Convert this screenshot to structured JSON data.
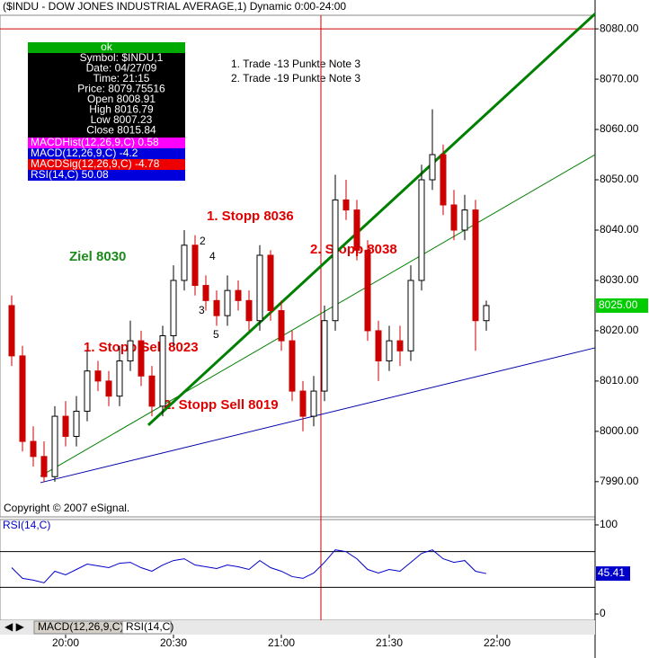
{
  "chart_data": {
    "type": "candlestick",
    "title": "($INDU - DOW JONES INDUSTRIAL AVERAGE,1) Dynamic 0:00-24:00",
    "up_color": "#000000",
    "down_color": "#cc0000",
    "x": [
      1185,
      1188,
      1191,
      1194,
      1197,
      1200,
      1203,
      1206,
      1209,
      1212,
      1215,
      1218,
      1221,
      1224,
      1227,
      1230,
      1233,
      1236,
      1239,
      1242,
      1245,
      1248,
      1251,
      1254,
      1257,
      1260,
      1263,
      1266,
      1269,
      1272,
      1275,
      1278,
      1281,
      1284,
      1287,
      1290,
      1293,
      1296,
      1299,
      1302,
      1305,
      1308,
      1311,
      1314,
      1317
    ],
    "open": [
      8025,
      8015,
      7998,
      7995,
      7991,
      8003,
      7999,
      8004,
      8012,
      8010,
      8007,
      8014,
      8018,
      8011,
      8005,
      8019,
      8030,
      8037,
      8029,
      8026,
      8023,
      8028,
      8026,
      8022,
      8035,
      8024,
      8018,
      8008,
      8003,
      8008,
      8022,
      8046,
      8044,
      8036,
      8020,
      8014,
      8018,
      8016,
      8030,
      8050,
      8055,
      8045,
      8040,
      8044,
      8022
    ],
    "high": [
      8027,
      8017,
      8001,
      7998,
      8005,
      8006,
      8007,
      8016,
      8014,
      8012,
      8017,
      8022,
      8020,
      8013,
      8021,
      8033,
      8040,
      8039,
      8031,
      8028,
      8031,
      8030,
      8028,
      8037,
      8036,
      8026,
      8020,
      8010,
      8011,
      8025,
      8051,
      8050,
      8046,
      8038,
      8022,
      8021,
      8021,
      8033,
      8053,
      8064,
      8057,
      8048,
      8047,
      8046,
      8026
    ],
    "low": [
      8013,
      7996,
      7993,
      7990,
      7990,
      7997,
      7997,
      8002,
      8008,
      8005,
      8005,
      8012,
      8009,
      8003,
      8003,
      8017,
      8028,
      8027,
      8024,
      8021,
      8021,
      8024,
      8020,
      8020,
      8022,
      8016,
      8006,
      8000,
      8001,
      8006,
      8020,
      8042,
      8034,
      8018,
      8010,
      8012,
      8013,
      8014,
      8028,
      8048,
      8043,
      8038,
      8038,
      8016,
      8020
    ],
    "close": [
      8015,
      7998,
      7995,
      7991,
      8003,
      7999,
      8004,
      8012,
      8010,
      8007,
      8014,
      8018,
      8011,
      8005,
      8019,
      8030,
      8037,
      8029,
      8026,
      8023,
      8028,
      8026,
      8022,
      8035,
      8024,
      8018,
      8008,
      8003,
      8008,
      8022,
      8046,
      8044,
      8036,
      8020,
      8014,
      8018,
      8016,
      8030,
      8050,
      8055,
      8045,
      8040,
      8044,
      8022,
      8025
    ],
    "xlim": [
      1181.75,
      1347.25
    ],
    "xticks": [
      {
        "value": 1200,
        "label": "20:00"
      },
      {
        "value": 1230,
        "label": "20:30"
      },
      {
        "value": 1260,
        "label": "21:00"
      },
      {
        "value": 1290,
        "label": "21:30"
      },
      {
        "value": 1320,
        "label": "22:00"
      }
    ],
    "ylim": [
      7983,
      8082.7
    ],
    "yticks": [
      {
        "value": 7990,
        "label": "7990.00"
      },
      {
        "value": 8000,
        "label": "8000.00"
      },
      {
        "value": 8010,
        "label": "8010.00"
      },
      {
        "value": 8020,
        "label": "8020.00"
      },
      {
        "value": 8030,
        "label": "8030.00"
      },
      {
        "value": 8040,
        "label": "8040.00"
      },
      {
        "value": 8050,
        "label": "8050.00"
      },
      {
        "value": 8060,
        "label": "8060.00"
      },
      {
        "value": 8070,
        "label": "8070.00"
      },
      {
        "value": 8080,
        "label": "8080.00"
      }
    ],
    "last_price": {
      "value": 8025,
      "label": "8025.00"
    },
    "hline": 8080,
    "vline": 1271,
    "trendlines": [
      {
        "color": "#008000",
        "width": 3,
        "x": [
          1223,
          1347.25
        ],
        "y": [
          8001.25,
          8083
        ]
      },
      {
        "color": "#008000",
        "width": 1,
        "x": [
          1193,
          1347.25
        ],
        "y": [
          7991.1,
          8055
        ]
      },
      {
        "color": "#0000aa",
        "width": 1,
        "x": [
          1193,
          1347.25
        ],
        "y": [
          7989.8,
          8016.6
        ]
      }
    ],
    "annotations": [
      "1. Stopp 8036",
      "2. Stopp 8038",
      "Ziel 8030",
      "1. Stopp Sell 8023",
      "2. Stopp Sell 8019",
      "2",
      "1",
      "4",
      "3",
      "5",
      "1. Trade -13 Punkte Note 3",
      "2. Trade -19 Punkte Note 3",
      "Copyright © 2007 eSignal."
    ],
    "rsi": {
      "name": "RSI(14,C)",
      "color": "#0000cc",
      "values": [
        52,
        40,
        38,
        35,
        48,
        44,
        50,
        56,
        54,
        52,
        57,
        58,
        52,
        48,
        55,
        60,
        62,
        55,
        53,
        51,
        55,
        53,
        50,
        60,
        52,
        48,
        42,
        40,
        46,
        58,
        72,
        70,
        62,
        50,
        46,
        50,
        48,
        58,
        68,
        72,
        62,
        58,
        60,
        48,
        45.41
      ],
      "ylim": [
        -7,
        106
      ],
      "yticks": [
        0,
        100
      ],
      "levels": [
        70,
        30
      ],
      "last": 45.41
    }
  },
  "info_box": {
    "header": "ok",
    "rows": [
      "Symbol: $INDU,1",
      "Date: 04/27/09",
      "Time: 21:15",
      "Price: 8079.75516",
      "Open 8008.91",
      "High 8016.79",
      "Low 8007.23",
      "Close 8015.84"
    ],
    "indicators": [
      {
        "text": "MACDHist(12,26,9,C) 0.58",
        "color": "#ff00ff"
      },
      {
        "text": "MACD(12,26,9,C) -4.2",
        "color": "#0000dd"
      },
      {
        "text": "MACDSig(12,26,9,C) -4.78",
        "color": "#ee0000"
      },
      {
        "text": "RSI(14,C) 50.08",
        "color": "#0000dd"
      }
    ]
  },
  "tabs": [
    "MACD(12,26,9,C)",
    "RSI(14,C)"
  ]
}
